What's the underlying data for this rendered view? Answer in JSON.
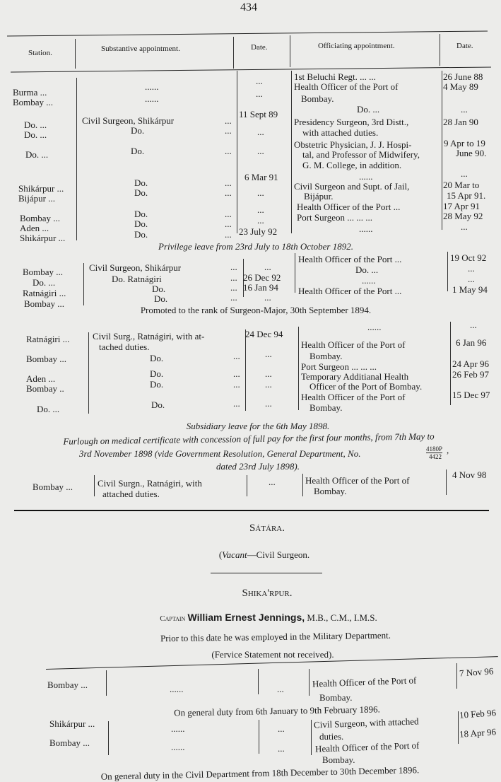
{
  "page_number": "434",
  "headers": {
    "station": "Station.",
    "subst": "Substantive appointment.",
    "date": "Date.",
    "off": "Officiating appointment.",
    "date2": "Date."
  },
  "s1": {
    "station": [
      "Burma ...",
      "Bombay ...",
      "Do. ...",
      "Do. ...",
      "Do. ...",
      "Shikárpur ...",
      "Bijápur ...",
      "Bombay ...",
      "Aden ...",
      "Shikárpur ..."
    ],
    "subst": [
      "......",
      "......",
      "Civil Surgeon, Shikárpur",
      "...",
      "Do.",
      "...",
      "Do.",
      "...",
      "Do.",
      "...",
      "Do.",
      "...",
      "Do.",
      "...",
      "Do.",
      "...",
      "Do.",
      "..."
    ],
    "date": [
      "...",
      "...",
      "11 Sept 89",
      "...",
      "...",
      "6 Mar 91",
      "...",
      "...",
      "...",
      "23 July 92"
    ],
    "off": [
      "1st Beluchi Regt.     ...    ...",
      "Health Officer of the Port of",
      "Bombay.",
      "Do.                    ...",
      "Presidency Surgeon, 3rd Distt.,",
      "with attached duties.",
      "Obstetric Physician, J. J. Hospi-",
      "tal, and Professor of Midwifery,",
      "G. M. College, in addition.",
      "......",
      "Civil Surgeon and Supt. of Jail,",
      "Bijápur.",
      "Health Officer of the Port   ...",
      "Port Surgeon   ...     ...    ...",
      "......"
    ],
    "date2": [
      "26 June 88",
      "4 May 89",
      "...",
      "28 Jan 90",
      "9 Apr to 19",
      "June 90.",
      "...",
      "20 Mar to",
      "15 Apr 91.",
      "17 Apr 91",
      "28 May 92",
      "..."
    ]
  },
  "note1": "Privilege leave from 23rd July to 18th October 1892.",
  "s2": {
    "station": [
      "Bombay ...",
      "Do. ...",
      "Ratnágiri ...",
      "Bombay ..."
    ],
    "subst": [
      "Civil Surgeon, Shikárpur",
      "...",
      "Do.          Ratnágiri",
      "...",
      "Do.",
      "...",
      "Do.",
      "..."
    ],
    "date": [
      "...",
      "26 Dec 92",
      "16 Jan 94",
      "..."
    ],
    "off": [
      "Health Officer of the Port     ...",
      "Do.                    ...",
      "......",
      "Health Officer of the Port     ..."
    ],
    "date2": [
      "19 Oct 92",
      "...",
      "...",
      "1 May 94"
    ]
  },
  "note2": "Promoted to the rank of Surgeon-Major, 30th September 1894.",
  "s3": {
    "station": [
      "Ratnágiri ...",
      "Bombay ...",
      "Aden ...",
      "Bombay ..",
      "Do. ..."
    ],
    "subst": [
      "Civil Surg., Ratnágiri, with at-",
      "tached duties.",
      "Do.",
      "...",
      "Do.",
      "...",
      "Do.",
      "...",
      "Do.",
      "..."
    ],
    "date": [
      "24 Dec 94",
      "...",
      "...",
      "...",
      "..."
    ],
    "off": [
      "......",
      "Health Officer of the Port of",
      "Bombay.",
      "Port Surgeon   ...     ...    ...",
      "Temporary Additianal Health",
      "Officer of the Port of Bombay.",
      "Health Officer of the Port of",
      "Bombay."
    ],
    "date2": [
      "...",
      "6 Jan 96",
      "24 Apr 96",
      "26 Feb 97",
      "15 Dec 97"
    ]
  },
  "note3": "Subsidiary leave for the 6th May 1898.",
  "note4": {
    "line1": "Furlough on medical certificate with concession of full pay for the first four months, from 7th May to",
    "line2": "3rd November 1898 (vide Government Resolution, General Department, No.",
    "frac_num": "4180P",
    "frac_den": "4422",
    "frac_tail": ",",
    "line3": "dated 23rd July 1898)."
  },
  "s4": {
    "station": "Bombay ...",
    "subst": [
      "Civil Surgn., Ratnágiri, with",
      "attached duties."
    ],
    "date": "...",
    "off": [
      "Health Officer of the Port of",
      "Bombay."
    ],
    "date2": "4 Nov 98"
  },
  "satara": {
    "title": "Sátára.",
    "vacant": "Vacant",
    "rest": "—Civil Surgeon."
  },
  "shikarpur": {
    "title": "Shika'rpur.",
    "rank": "Captain",
    "name": "William Ernest Jennings,",
    "degrees": "M.B., C.M., I.M.S.",
    "prior": "Prior to this date he was employed in the Military Department.",
    "statement": "(Fervice Statement not received).",
    "rows": [
      {
        "station": "Bombay ...",
        "subst": "......",
        "date": "...",
        "off": [
          "Health Officer of the Port of",
          "Bombay."
        ],
        "date2": "7 Nov 96"
      },
      {
        "station": "Shikárpur ...",
        "subst": "......",
        "date": "...",
        "off": [
          "Civil Surgeon, with attached",
          "duties."
        ],
        "date2": "10 Feb 96"
      },
      {
        "station": "Bombay ...",
        "subst": "......",
        "date": "...",
        "off": [
          "Health Officer of the Port of",
          "Bombay."
        ],
        "date2": "18 Apr 96"
      }
    ],
    "note1": "On general duty from 6th January to 9th February 1896.",
    "note2": "On general duty in the Civil Department from 18th December to 30th December 1896."
  }
}
